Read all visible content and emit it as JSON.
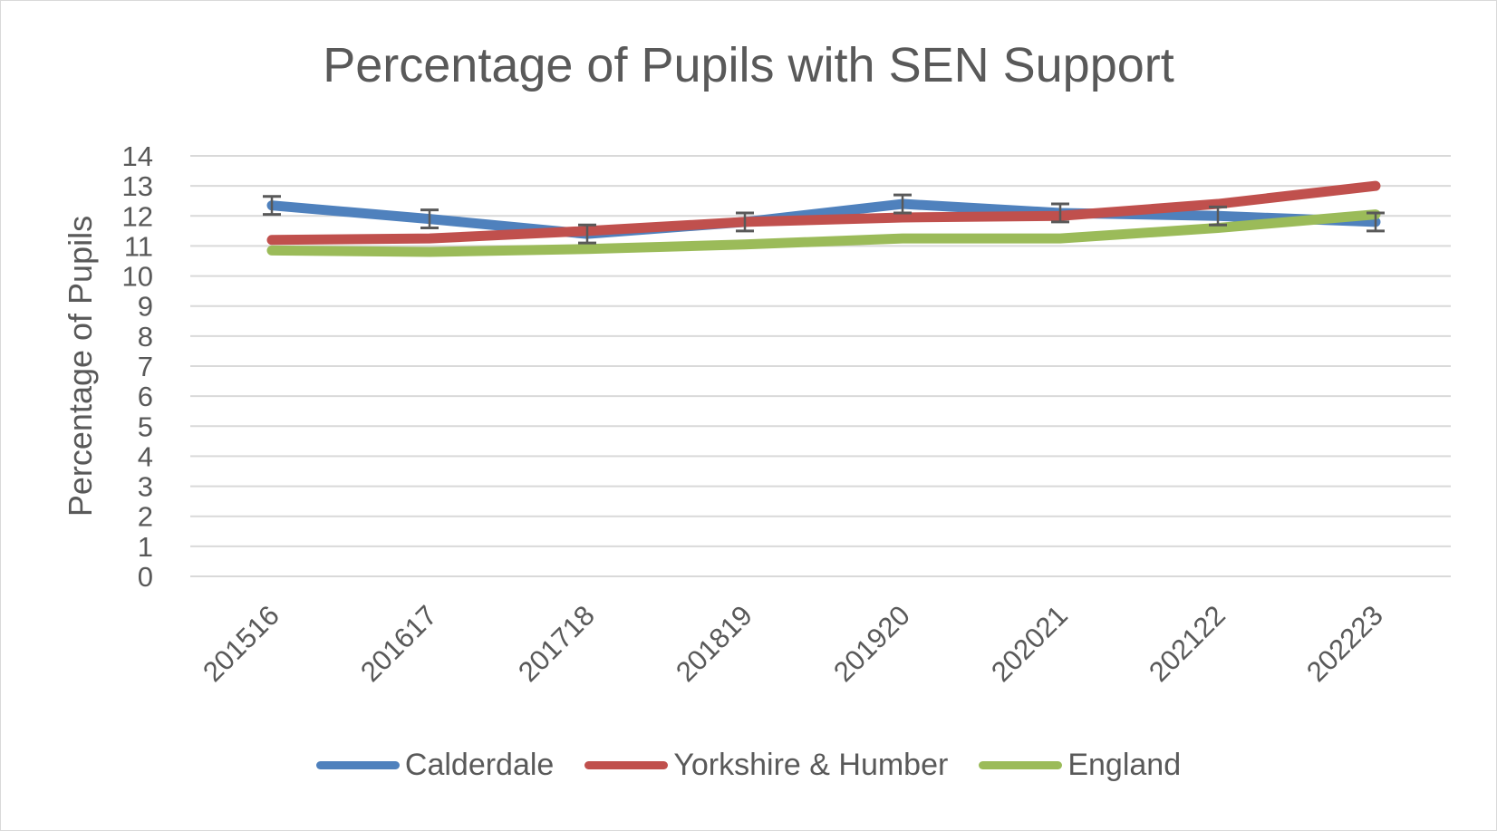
{
  "chart_data": {
    "type": "line",
    "title": "Percentage of Pupils with SEN Support",
    "xlabel": "",
    "ylabel": "Percentage of Pupils",
    "categories": [
      "201516",
      "201617",
      "201718",
      "201819",
      "201920",
      "202021",
      "202122",
      "202223"
    ],
    "ylim": [
      0,
      14
    ],
    "yticks": [
      "0",
      "1",
      "2",
      "3",
      "4",
      "5",
      "6",
      "7",
      "8",
      "9",
      "10",
      "11",
      "12",
      "13",
      "14"
    ],
    "grid": true,
    "legend": "bottom",
    "series": [
      {
        "name": "Calderdale",
        "color": "#4f81bd",
        "values": [
          12.35,
          11.9,
          11.4,
          11.8,
          12.4,
          12.1,
          12.0,
          11.8
        ],
        "error": 0.3
      },
      {
        "name": "Yorkshire & Humber",
        "color": "#c0504d",
        "values": [
          11.2,
          11.25,
          11.5,
          11.8,
          11.95,
          12.0,
          12.4,
          13.0
        ]
      },
      {
        "name": "England",
        "color": "#9bbb59",
        "values": [
          10.85,
          10.8,
          10.9,
          11.05,
          11.25,
          11.25,
          11.6,
          12.05
        ]
      }
    ]
  }
}
